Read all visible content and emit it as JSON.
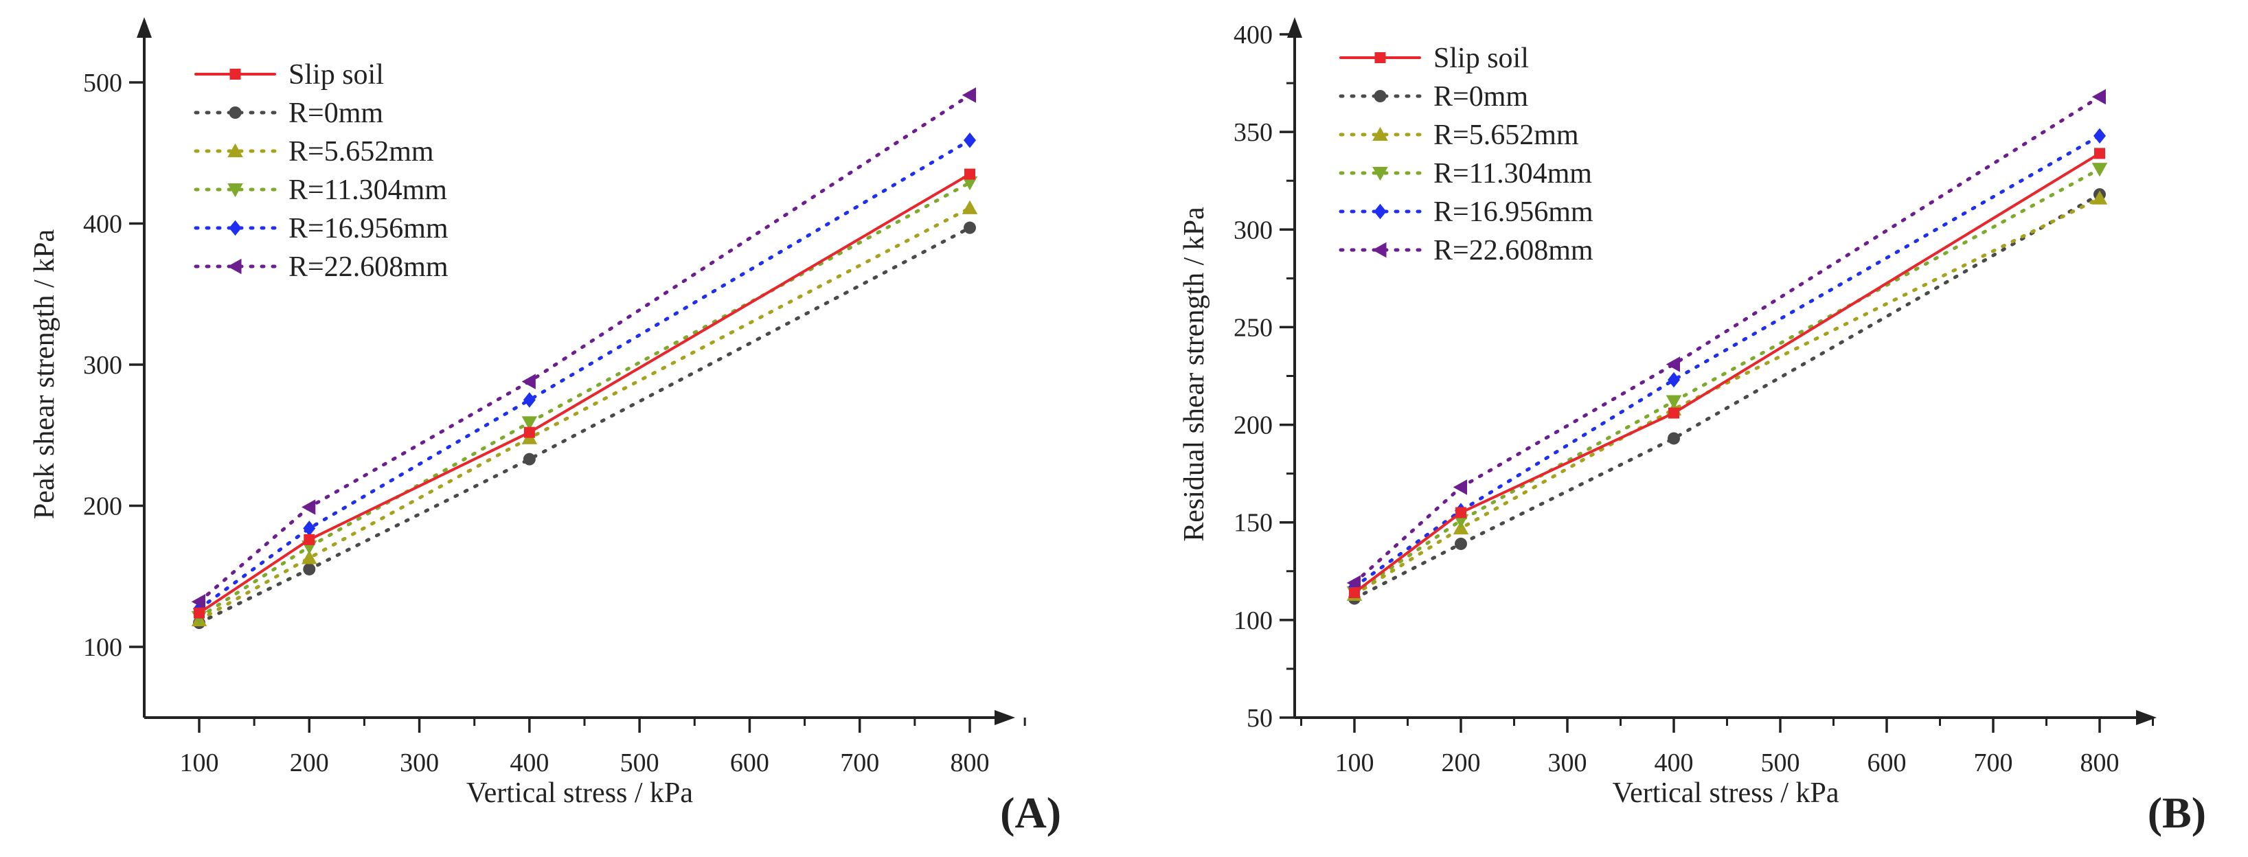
{
  "colors": {
    "slip": "#e8262b",
    "r0": "#4a4a4a",
    "r5": "#a6a21c",
    "r11": "#7eaa2c",
    "r16": "#1e2ff0",
    "r22": "#6c1d8f",
    "axis": "#222222"
  },
  "chart_data": [
    {
      "type": "line",
      "panel": "A",
      "panel_label": "(A)",
      "xlabel": "Vertical stress / kPa",
      "ylabel": "Peak shear strength / kPa",
      "xlim": [
        50,
        850
      ],
      "ylim": [
        50,
        550
      ],
      "xticks": [
        100,
        200,
        300,
        400,
        500,
        600,
        700,
        800
      ],
      "yticks": [
        100,
        200,
        300,
        400,
        500
      ],
      "x": [
        100,
        200,
        400,
        800
      ],
      "legend_position": "top-left",
      "series": [
        {
          "name": "Slip soil",
          "style": "solid",
          "marker": "square",
          "color_key": "slip",
          "values": [
            124,
            176,
            252,
            435
          ]
        },
        {
          "name": "R=0mm",
          "style": "dotted",
          "marker": "circle",
          "color_key": "r0",
          "values": [
            117,
            155,
            233,
            397
          ]
        },
        {
          "name": "R=5.652mm",
          "style": "dotted",
          "marker": "triangle-up",
          "color_key": "r5",
          "values": [
            119,
            163,
            248,
            411
          ]
        },
        {
          "name": "R=11.304mm",
          "style": "dotted",
          "marker": "triangle-down",
          "color_key": "r11",
          "values": [
            121,
            171,
            259,
            429
          ]
        },
        {
          "name": "R=16.956mm",
          "style": "dotted",
          "marker": "diamond",
          "color_key": "r16",
          "values": [
            127,
            184,
            275,
            459
          ]
        },
        {
          "name": "R=22.608mm",
          "style": "dotted",
          "marker": "triangle-left",
          "color_key": "r22",
          "values": [
            132,
            199,
            288,
            491
          ]
        }
      ]
    },
    {
      "type": "line",
      "panel": "B",
      "panel_label": "(B)",
      "xlabel": "Vertical stress / kPa",
      "ylabel": "Residual shear strength / kPa",
      "xlim": [
        50,
        850
      ],
      "ylim": [
        50,
        400
      ],
      "xticks": [
        100,
        200,
        300,
        400,
        500,
        600,
        700,
        800
      ],
      "yticks": [
        50,
        100,
        150,
        200,
        250,
        300,
        350,
        400
      ],
      "x": [
        100,
        200,
        400,
        800
      ],
      "legend_position": "top-left",
      "series": [
        {
          "name": "Slip soil",
          "style": "solid",
          "marker": "square",
          "color_key": "slip",
          "values": [
            114,
            155,
            206,
            339
          ]
        },
        {
          "name": "R=0mm",
          "style": "dotted",
          "marker": "circle",
          "color_key": "r0",
          "values": [
            111,
            139,
            193,
            318
          ]
        },
        {
          "name": "R=5.652mm",
          "style": "dotted",
          "marker": "triangle-up",
          "color_key": "r5",
          "values": [
            113,
            147,
            208,
            316
          ]
        },
        {
          "name": "R=11.304mm",
          "style": "dotted",
          "marker": "triangle-down",
          "color_key": "r11",
          "values": [
            114,
            151,
            212,
            331
          ]
        },
        {
          "name": "R=16.956mm",
          "style": "dotted",
          "marker": "diamond",
          "color_key": "r16",
          "values": [
            117,
            156,
            223,
            348
          ]
        },
        {
          "name": "R=22.608mm",
          "style": "dotted",
          "marker": "triangle-left",
          "color_key": "r22",
          "values": [
            119,
            168,
            231,
            368
          ]
        }
      ]
    }
  ]
}
